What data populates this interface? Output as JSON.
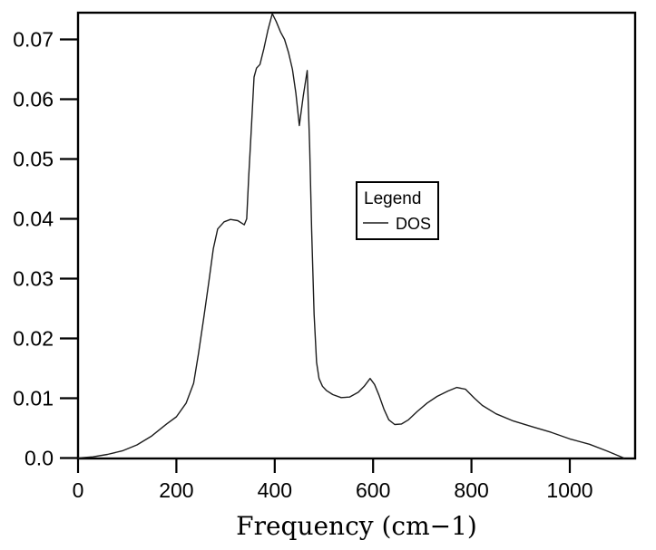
{
  "chart_data": {
    "type": "line",
    "title": "",
    "xlabel": "Frequency (cm−1)",
    "ylabel": "",
    "xlim": [
      0,
      1133
    ],
    "ylim": [
      0,
      0.0744
    ],
    "grid": false,
    "frame": "full-box",
    "x_ticks": {
      "values": [
        0,
        200,
        400,
        600,
        800,
        1000
      ],
      "labels": [
        "0",
        "200",
        "400",
        "600",
        "800",
        "1000"
      ]
    },
    "y_ticks": {
      "values": [
        0,
        0.01,
        0.02,
        0.03,
        0.04,
        0.05,
        0.06,
        0.07
      ],
      "labels": [
        "0.0",
        "0.01",
        "0.02",
        "0.03",
        "0.04",
        "0.05",
        "0.06",
        "0.07"
      ]
    },
    "legend": {
      "title": "Legend",
      "position": "inside-center-right",
      "entries": [
        {
          "label": "DOS",
          "line_style": "solid",
          "color": "#1c1c1c"
        }
      ]
    },
    "series": [
      {
        "name": "DOS",
        "points": [
          [
            0,
            0.0
          ],
          [
            30,
            0.0002
          ],
          [
            60,
            0.0006
          ],
          [
            90,
            0.0012
          ],
          [
            120,
            0.0022
          ],
          [
            150,
            0.0037
          ],
          [
            180,
            0.0057
          ],
          [
            200,
            0.0069
          ],
          [
            220,
            0.0092
          ],
          [
            235,
            0.0125
          ],
          [
            245,
            0.0175
          ],
          [
            256,
            0.0237
          ],
          [
            266,
            0.0295
          ],
          [
            275,
            0.035
          ],
          [
            284,
            0.0383
          ],
          [
            297,
            0.0395
          ],
          [
            310,
            0.0399
          ],
          [
            325,
            0.0397
          ],
          [
            338,
            0.039
          ],
          [
            343,
            0.04
          ],
          [
            347,
            0.047
          ],
          [
            352,
            0.0545
          ],
          [
            358,
            0.0637
          ],
          [
            363,
            0.0652
          ],
          [
            370,
            0.0658
          ],
          [
            378,
            0.0685
          ],
          [
            386,
            0.0715
          ],
          [
            395,
            0.0743
          ],
          [
            403,
            0.073
          ],
          [
            412,
            0.0712
          ],
          [
            420,
            0.07
          ],
          [
            428,
            0.0678
          ],
          [
            436,
            0.065
          ],
          [
            443,
            0.061
          ],
          [
            450,
            0.0556
          ],
          [
            458,
            0.0605
          ],
          [
            466,
            0.0648
          ],
          [
            471,
            0.052
          ],
          [
            475,
            0.038
          ],
          [
            480,
            0.024
          ],
          [
            485,
            0.016
          ],
          [
            490,
            0.0133
          ],
          [
            497,
            0.012
          ],
          [
            505,
            0.0113
          ],
          [
            518,
            0.0106
          ],
          [
            535,
            0.0101
          ],
          [
            552,
            0.0102
          ],
          [
            570,
            0.011
          ],
          [
            582,
            0.012
          ],
          [
            594,
            0.0133
          ],
          [
            603,
            0.0123
          ],
          [
            612,
            0.0105
          ],
          [
            622,
            0.0082
          ],
          [
            632,
            0.0064
          ],
          [
            644,
            0.0056
          ],
          [
            658,
            0.0057
          ],
          [
            672,
            0.0064
          ],
          [
            690,
            0.0078
          ],
          [
            710,
            0.0092
          ],
          [
            730,
            0.0103
          ],
          [
            752,
            0.0112
          ],
          [
            770,
            0.0118
          ],
          [
            788,
            0.0115
          ],
          [
            806,
            0.01
          ],
          [
            822,
            0.0088
          ],
          [
            850,
            0.0074
          ],
          [
            885,
            0.0062
          ],
          [
            925,
            0.0052
          ],
          [
            962,
            0.0043
          ],
          [
            1000,
            0.0032
          ],
          [
            1040,
            0.0023
          ],
          [
            1075,
            0.0012
          ],
          [
            1110,
            0.0
          ]
        ]
      }
    ]
  },
  "colors": {
    "background": "#ffffff",
    "axis": "#000000",
    "text": "#000000",
    "curve": "#1c1c1c"
  }
}
